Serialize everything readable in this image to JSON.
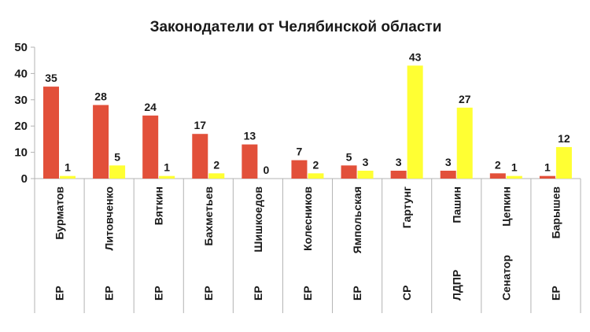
{
  "chart_data": {
    "type": "bar",
    "title": "Законодатели от Челябинской области",
    "xlabel": "",
    "ylabel": "",
    "ylim": [
      0,
      50
    ],
    "yticks": [
      0,
      10,
      20,
      30,
      40,
      50
    ],
    "grid": false,
    "legend": "none",
    "categories": [
      {
        "party": "ЕР",
        "name": "Бурматов"
      },
      {
        "party": "ЕР",
        "name": "Литовченко"
      },
      {
        "party": "ЕР",
        "name": "Вяткин"
      },
      {
        "party": "ЕР",
        "name": "Бахметьев"
      },
      {
        "party": "ЕР",
        "name": "Шишкоедов"
      },
      {
        "party": "ЕР",
        "name": "Колесников"
      },
      {
        "party": "ЕР",
        "name": "Ямпольская"
      },
      {
        "party": "СР",
        "name": "Гартунг"
      },
      {
        "party": "ЛДПР",
        "name": "Пашин"
      },
      {
        "party": "Сенатор",
        "name": "Цепкин"
      },
      {
        "party": "ЕР",
        "name": "Барышев"
      }
    ],
    "series": [
      {
        "color": "#e2503a",
        "values": [
          35,
          28,
          24,
          17,
          13,
          7,
          5,
          3,
          3,
          2,
          1
        ]
      },
      {
        "color": "#ffff33",
        "values": [
          1,
          5,
          1,
          2,
          0,
          2,
          3,
          43,
          27,
          1,
          12
        ]
      }
    ]
  }
}
